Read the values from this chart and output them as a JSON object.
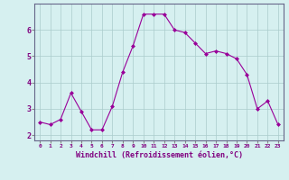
{
  "x": [
    0,
    1,
    2,
    3,
    4,
    5,
    6,
    7,
    8,
    9,
    10,
    11,
    12,
    13,
    14,
    15,
    16,
    17,
    18,
    19,
    20,
    21,
    22,
    23
  ],
  "y": [
    2.5,
    2.4,
    2.6,
    3.6,
    2.9,
    2.2,
    2.2,
    3.1,
    4.4,
    5.4,
    6.6,
    6.6,
    6.6,
    6.0,
    5.9,
    5.5,
    5.1,
    5.2,
    5.1,
    4.9,
    4.3,
    3.0,
    3.3,
    2.4
  ],
  "line_color": "#990099",
  "marker": "D",
  "marker_size": 2,
  "bg_color": "#d6f0f0",
  "grid_color": "#aacccc",
  "xlabel": "Windchill (Refroidissement éolien,°C)",
  "text_color": "#800080",
  "ylabel_ticks": [
    2,
    3,
    4,
    5,
    6
  ],
  "ylim": [
    1.8,
    7.0
  ],
  "xlim": [
    -0.5,
    23.5
  ],
  "xtick_labels": [
    "0",
    "1",
    "2",
    "3",
    "4",
    "5",
    "6",
    "7",
    "8",
    "9",
    "10",
    "11",
    "12",
    "13",
    "14",
    "15",
    "16",
    "17",
    "18",
    "19",
    "20",
    "21",
    "22",
    "23"
  ]
}
